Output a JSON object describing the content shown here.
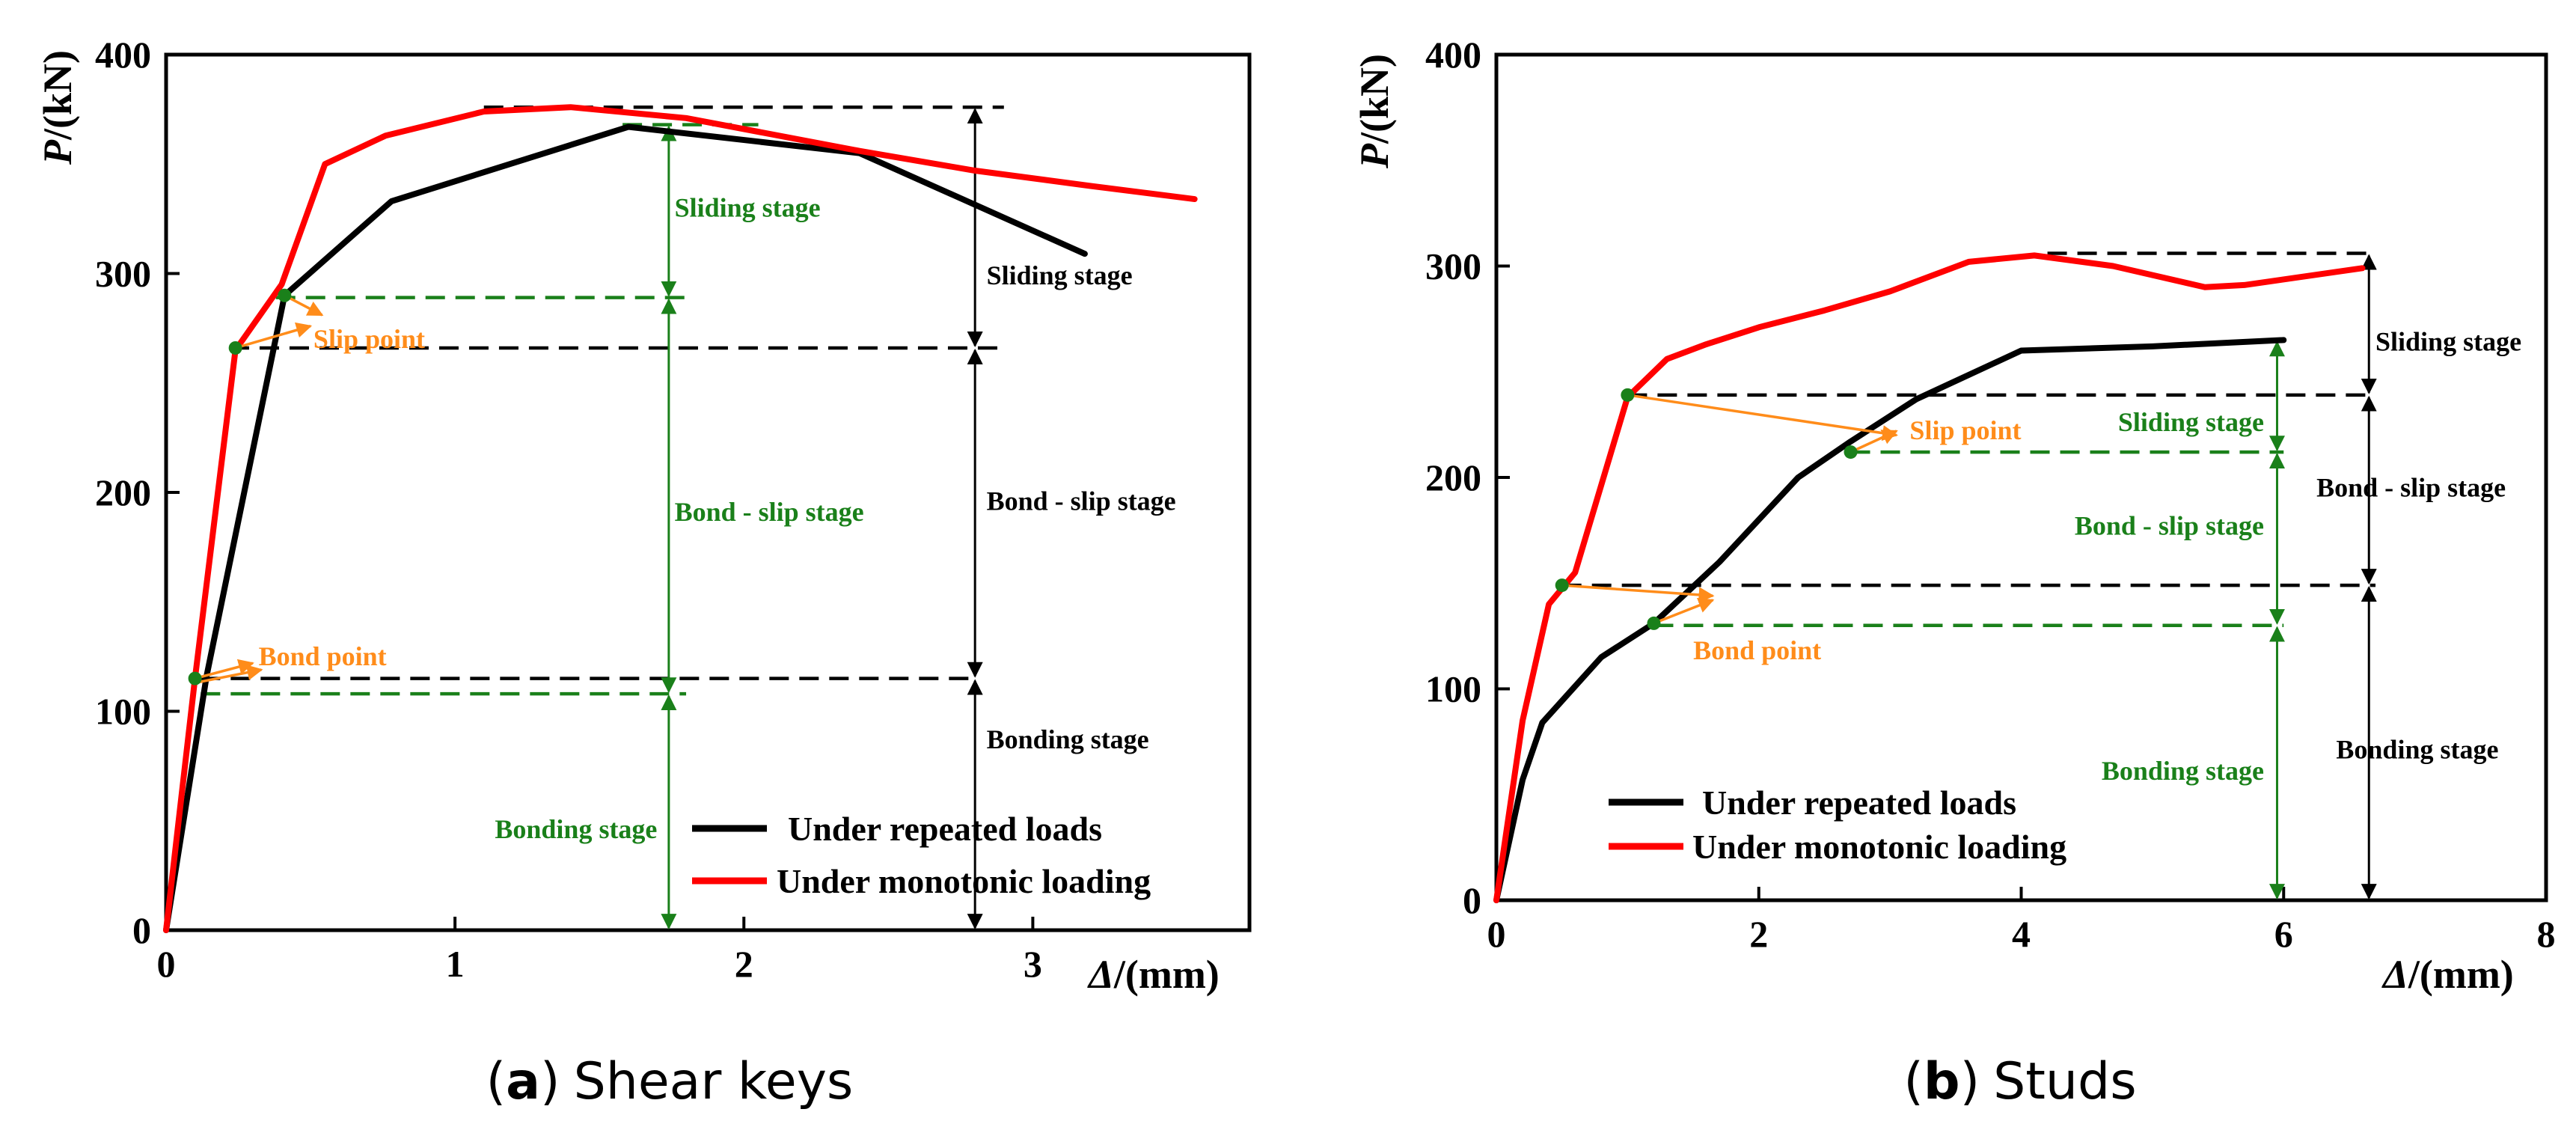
{
  "colors": {
    "repeated": "#000000",
    "monotonic": "#ff0000",
    "green": "#1a801a",
    "orange": "#ff8c1a",
    "axis": "#000000"
  },
  "chart_data": [
    {
      "id": "a",
      "type": "line",
      "caption_letter": "a",
      "caption_paren_open": "(",
      "caption_paren_close": ")",
      "caption_text": "Shear keys",
      "ylabel_p": "P",
      "ylabel_unit": "/(kN)",
      "xlabel_d": "Δ",
      "xlabel_unit": "/(mm)",
      "xlim": [
        0,
        3.75
      ],
      "ylim": [
        0,
        400
      ],
      "xticks": [
        0,
        1,
        2,
        3
      ],
      "xtick_labels": [
        "0",
        "1",
        "2",
        "3"
      ],
      "yticks": [
        0,
        100,
        200,
        300,
        400
      ],
      "ytick_labels": [
        "0",
        "100",
        "200",
        "300",
        "400"
      ],
      "legend": {
        "position": "lower-right",
        "entries": [
          "Under repeated loads",
          "Under monotonic loading"
        ]
      },
      "series": [
        {
          "name": "Under repeated loads",
          "color_key": "repeated",
          "x": [
            0,
            0.14,
            0.41,
            0.78,
            1.6,
            2.4,
            3.18
          ],
          "y": [
            0,
            116,
            290,
            333,
            367,
            355,
            309
          ]
        },
        {
          "name": "Under monotonic loading",
          "color_key": "monotonic",
          "x": [
            0,
            0.1,
            0.24,
            0.4,
            0.55,
            0.76,
            1.1,
            1.4,
            1.8,
            2.4,
            2.8,
            3.2,
            3.56
          ],
          "y": [
            0,
            115,
            265,
            295,
            350,
            363,
            374,
            376,
            371,
            356,
            347,
            340,
            334
          ]
        }
      ],
      "hlines": [
        {
          "y": 376,
          "x1": 1.1,
          "x2": 2.9,
          "color_key": "repeated"
        },
        {
          "y": 266,
          "x1": 0.22,
          "x2": 2.9,
          "color_key": "repeated"
        },
        {
          "y": 115,
          "x1": 0.12,
          "x2": 2.8,
          "color_key": "repeated"
        },
        {
          "y": 368,
          "x1": 1.58,
          "x2": 2.05,
          "color_key": "green"
        },
        {
          "y": 289,
          "x1": 0.38,
          "x2": 1.8,
          "color_key": "green"
        },
        {
          "y": 108,
          "x1": 0.12,
          "x2": 1.8,
          "color_key": "green"
        }
      ],
      "vspans": [
        {
          "x": 1.74,
          "y1": 368,
          "y2": 289,
          "color_key": "green"
        },
        {
          "x": 1.74,
          "y1": 289,
          "y2": 108,
          "color_key": "green"
        },
        {
          "x": 1.74,
          "y1": 108,
          "y2": 0,
          "color_key": "green"
        },
        {
          "x": 2.8,
          "y1": 376,
          "y2": 266,
          "color_key": "repeated"
        },
        {
          "x": 2.8,
          "y1": 266,
          "y2": 115,
          "color_key": "repeated"
        },
        {
          "x": 2.8,
          "y1": 115,
          "y2": 0,
          "color_key": "repeated"
        }
      ],
      "points": [
        {
          "x": 0.1,
          "y": 115,
          "color_key": "green"
        },
        {
          "x": 0.24,
          "y": 266,
          "color_key": "green"
        },
        {
          "x": 0.41,
          "y": 290,
          "color_key": "green"
        }
      ],
      "arrows": [
        {
          "x1": 0.1,
          "y1": 115,
          "x2": 0.3,
          "y2": 122,
          "color_key": "orange"
        },
        {
          "x1": 0.1,
          "y1": 113,
          "x2": 0.33,
          "y2": 119,
          "color_key": "orange"
        },
        {
          "x1": 0.24,
          "y1": 266,
          "x2": 0.5,
          "y2": 276,
          "color_key": "orange"
        },
        {
          "x1": 0.41,
          "y1": 290,
          "x2": 0.54,
          "y2": 281,
          "color_key": "orange"
        }
      ],
      "annotations": [
        {
          "text": "Slip point",
          "x": 0.51,
          "y": 266,
          "color_key": "orange",
          "anchor": "start"
        },
        {
          "text": "Bond point",
          "x": 0.32,
          "y": 121,
          "color_key": "orange",
          "anchor": "start"
        },
        {
          "text": "Sliding stage",
          "x": 1.76,
          "y": 326,
          "color_key": "green",
          "anchor": "start"
        },
        {
          "text": "Bond - slip stage",
          "x": 1.76,
          "y": 187,
          "color_key": "green",
          "anchor": "start"
        },
        {
          "text": "Bonding stage",
          "x": 1.7,
          "y": 42,
          "color_key": "green",
          "anchor": "end"
        },
        {
          "text": "Sliding stage",
          "x": 2.84,
          "y": 295,
          "color_key": "repeated",
          "anchor": "start"
        },
        {
          "text": "Bond - slip stage",
          "x": 2.84,
          "y": 192,
          "color_key": "repeated",
          "anchor": "start"
        },
        {
          "text": "Bonding stage",
          "x": 2.84,
          "y": 83,
          "color_key": "repeated",
          "anchor": "start"
        }
      ]
    },
    {
      "id": "b",
      "type": "line",
      "caption_letter": "b",
      "caption_paren_open": "(",
      "caption_paren_close": ")",
      "caption_text": "Studs",
      "ylabel_p": "P",
      "ylabel_unit": "/(kN)",
      "xlabel_d": "Δ",
      "xlabel_unit": "/(mm)",
      "xlim": [
        0,
        8
      ],
      "ylim": [
        0,
        400
      ],
      "xticks": [
        0,
        2,
        4,
        6,
        8
      ],
      "xtick_labels": [
        "0",
        "2",
        "4",
        "6",
        "8"
      ],
      "yticks": [
        0,
        100,
        200,
        300,
        400
      ],
      "ytick_labels": [
        "0",
        "100",
        "200",
        "300",
        "400"
      ],
      "legend": {
        "position": "lower-left",
        "entries": [
          "Under repeated loads",
          "Under monotonic loading"
        ]
      },
      "series": [
        {
          "name": "Under repeated loads",
          "color_key": "repeated",
          "x": [
            0,
            0.2,
            0.35,
            0.8,
            1.2,
            1.7,
            2.3,
            2.7,
            3.2,
            4.0,
            5.0,
            6.0
          ],
          "y": [
            0,
            57,
            84,
            115,
            131,
            160,
            200,
            217,
            237,
            260,
            262,
            265
          ]
        },
        {
          "name": "Under monotonic loading",
          "color_key": "monotonic",
          "x": [
            0,
            0.2,
            0.4,
            0.6,
            1.0,
            1.3,
            1.6,
            2.0,
            2.5,
            3.0,
            3.6,
            4.1,
            4.7,
            5.4,
            5.7,
            6.6
          ],
          "y": [
            0,
            85,
            140,
            155,
            238,
            256,
            263,
            271,
            279,
            288,
            302,
            305,
            300,
            290,
            291,
            299
          ]
        }
      ],
      "hlines": [
        {
          "y": 306,
          "x1": 4.2,
          "x2": 6.7,
          "color_key": "repeated"
        },
        {
          "y": 239,
          "x1": 1.0,
          "x2": 6.7,
          "color_key": "repeated"
        },
        {
          "y": 149,
          "x1": 0.5,
          "x2": 6.7,
          "color_key": "repeated"
        },
        {
          "y": 212,
          "x1": 2.7,
          "x2": 6.0,
          "color_key": "green"
        },
        {
          "y": 130,
          "x1": 1.2,
          "x2": 6.0,
          "color_key": "green"
        }
      ],
      "vspans": [
        {
          "x": 5.95,
          "y1": 265,
          "y2": 212,
          "color_key": "green"
        },
        {
          "x": 5.95,
          "y1": 212,
          "y2": 130,
          "color_key": "green"
        },
        {
          "x": 5.95,
          "y1": 130,
          "y2": 0,
          "color_key": "green"
        },
        {
          "x": 6.65,
          "y1": 306,
          "y2": 239,
          "color_key": "repeated"
        },
        {
          "x": 6.65,
          "y1": 239,
          "y2": 149,
          "color_key": "repeated"
        },
        {
          "x": 6.65,
          "y1": 149,
          "y2": 0,
          "color_key": "repeated"
        }
      ],
      "points": [
        {
          "x": 1.0,
          "y": 239,
          "color_key": "green"
        },
        {
          "x": 0.5,
          "y": 149,
          "color_key": "green"
        },
        {
          "x": 2.7,
          "y": 212,
          "color_key": "green"
        },
        {
          "x": 1.2,
          "y": 131,
          "color_key": "green"
        }
      ],
      "arrows": [
        {
          "x1": 1.0,
          "y1": 239,
          "x2": 3.05,
          "y2": 220,
          "color_key": "orange"
        },
        {
          "x1": 2.7,
          "y1": 212,
          "x2": 3.05,
          "y2": 222,
          "color_key": "orange"
        },
        {
          "x1": 0.5,
          "y1": 149,
          "x2": 1.65,
          "y2": 144,
          "color_key": "orange"
        },
        {
          "x1": 1.2,
          "y1": 131,
          "x2": 1.65,
          "y2": 142,
          "color_key": "orange"
        }
      ],
      "annotations": [
        {
          "text": "Slip point",
          "x": 3.15,
          "y": 218,
          "color_key": "orange",
          "anchor": "start"
        },
        {
          "text": "Bond point",
          "x": 1.5,
          "y": 114,
          "color_key": "orange",
          "anchor": "start"
        },
        {
          "text": "Sliding stage",
          "x": 5.85,
          "y": 222,
          "color_key": "green",
          "anchor": "end"
        },
        {
          "text": "Bond - slip stage",
          "x": 5.85,
          "y": 173,
          "color_key": "green",
          "anchor": "end"
        },
        {
          "text": "Bonding stage",
          "x": 5.85,
          "y": 57,
          "color_key": "green",
          "anchor": "end"
        },
        {
          "text": "Sliding stage",
          "x": 6.7,
          "y": 260,
          "color_key": "repeated",
          "anchor": "start"
        },
        {
          "text": "Bond - slip stage",
          "x": 6.25,
          "y": 191,
          "color_key": "repeated",
          "anchor": "start"
        },
        {
          "text": "Bonding stage",
          "x": 6.4,
          "y": 67,
          "color_key": "repeated",
          "anchor": "start"
        }
      ]
    }
  ]
}
